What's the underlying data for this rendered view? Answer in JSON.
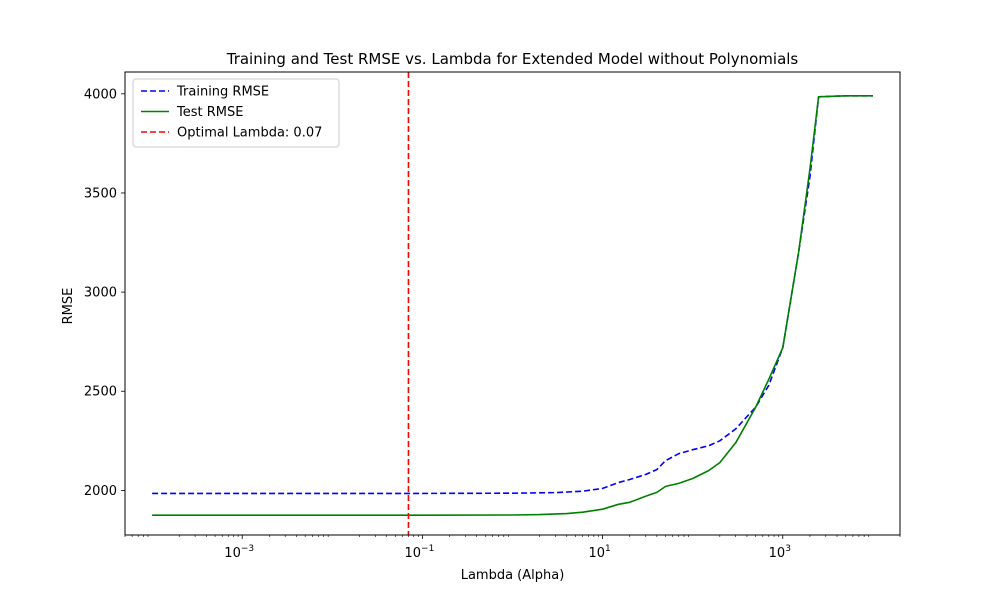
{
  "chart_data": {
    "type": "line",
    "title": "Training and Test RMSE vs. Lambda for Extended Model without Polynomials",
    "xlabel": "Lambda (Alpha)",
    "ylabel": "RMSE",
    "xscale": "log",
    "xlim": [
      5e-05,
      20000
    ],
    "ylim": [
      1775,
      4110
    ],
    "x_ticks": [
      {
        "value": 0.001,
        "base": "10",
        "exp": "−3"
      },
      {
        "value": 0.1,
        "base": "10",
        "exp": "−1"
      },
      {
        "value": 10,
        "base": "10",
        "exp": "1"
      },
      {
        "value": 1000,
        "base": "10",
        "exp": "3"
      }
    ],
    "y_ticks": [
      2000,
      2500,
      3000,
      3500,
      4000
    ],
    "grid": false,
    "legend_position": "top-left",
    "series": [
      {
        "name": "Training RMSE",
        "color": "#0000ff",
        "style": "dashed",
        "x": [
          0.0001,
          0.001,
          0.01,
          0.1,
          1,
          3,
          6,
          10,
          15,
          20,
          30,
          40,
          50,
          70,
          100,
          150,
          200,
          300,
          500,
          700,
          1000,
          1500,
          2000,
          2500,
          5000,
          10000
        ],
        "y": [
          1985,
          1985,
          1985,
          1985,
          1986,
          1989,
          1996,
          2010,
          2040,
          2055,
          2080,
          2105,
          2150,
          2185,
          2205,
          2225,
          2250,
          2310,
          2420,
          2530,
          2720,
          3200,
          3580,
          3985,
          3990,
          3990
        ]
      },
      {
        "name": "Test RMSE",
        "color": "#008000",
        "style": "solid",
        "x": [
          0.0001,
          0.001,
          0.01,
          0.1,
          1,
          2,
          4,
          6,
          10,
          15,
          20,
          30,
          40,
          50,
          70,
          100,
          150,
          200,
          300,
          500,
          700,
          1000,
          1500,
          2000,
          2500,
          5000,
          10000
        ],
        "y": [
          1875,
          1875,
          1875,
          1875,
          1876,
          1878,
          1883,
          1890,
          1905,
          1930,
          1940,
          1970,
          1990,
          2020,
          2035,
          2060,
          2100,
          2140,
          2240,
          2420,
          2560,
          2720,
          3200,
          3620,
          3985,
          3990,
          3990
        ]
      },
      {
        "name": "Optimal Lambda: 0.07",
        "color": "#ff0000",
        "style": "dashed",
        "vline_x": 0.07
      }
    ]
  }
}
